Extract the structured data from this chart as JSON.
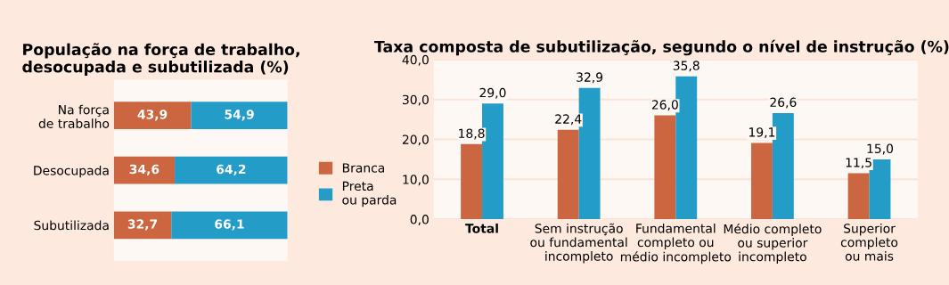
{
  "chart_data": [
    {
      "type": "bar",
      "orientation": "horizontal",
      "stacked": true,
      "title": "População na força de trabalho,\ndesocupada e subutilizada (%)",
      "categories": [
        "Na força\nde trabalho",
        "Desocupada",
        "Subutilizada"
      ],
      "legend": "right",
      "tick_labels": "y",
      "series": [
        {
          "name": "Branca",
          "color": "#cc6640",
          "values": [
            43.9,
            34.6,
            32.7
          ],
          "value_labels": [
            "43,9",
            "34,6",
            "32,7"
          ]
        },
        {
          "name": "Preta\nou parda",
          "color": "#239cc8",
          "values": [
            54.9,
            64.2,
            66.1
          ],
          "value_labels": [
            "54,9",
            "64,2",
            "66,1"
          ]
        }
      ]
    },
    {
      "type": "bar",
      "title": "Taxa composta de subutilização, segundo o nível de instrução (%)",
      "categories": [
        "Total",
        "Sem instrução\nou fundamental\nincompleto",
        "Fundamental\ncompleto ou\nmédio incompleto",
        "Médio completo\nou superior\nincompleto",
        "Superior\ncompleto\nou mais"
      ],
      "ylim": [
        0,
        40
      ],
      "yticks": [
        {
          "value": 0,
          "label": "0,0"
        },
        {
          "value": 10,
          "label": "10,0"
        },
        {
          "value": 20,
          "label": "20,0"
        },
        {
          "value": 30,
          "label": "30,0"
        },
        {
          "value": 40,
          "label": "40,0"
        }
      ],
      "grid": "y",
      "series": [
        {
          "color": "#cc6640",
          "values": [
            18.8,
            22.4,
            26.0,
            19.1,
            11.5
          ],
          "value_labels": [
            "18,8",
            "22,4",
            "26,0",
            "19,1",
            "11,5"
          ]
        },
        {
          "color": "#239cc8",
          "values": [
            29.0,
            32.9,
            35.8,
            26.6,
            15.0
          ],
          "value_labels": [
            "29,0",
            "32,9",
            "35,8",
            "26,6",
            "15,0"
          ]
        }
      ]
    }
  ]
}
